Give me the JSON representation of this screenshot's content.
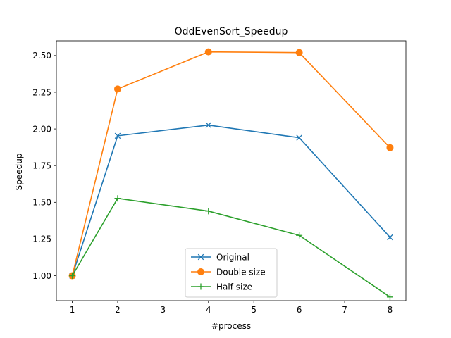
{
  "chart_data": {
    "type": "line",
    "title": "OddEvenSort_Speedup",
    "xlabel": "#process",
    "ylabel": "Speedup",
    "x": [
      1,
      2,
      4,
      6,
      8
    ],
    "xlim": [
      0.65,
      8.35
    ],
    "ylim": [
      0.83,
      2.6
    ],
    "xticks": [
      1,
      2,
      3,
      4,
      5,
      6,
      7,
      8
    ],
    "yticks": [
      1.0,
      1.25,
      1.5,
      1.75,
      2.0,
      2.25,
      2.5
    ],
    "ytick_labels": [
      "1.00",
      "1.25",
      "1.50",
      "1.75",
      "2.00",
      "2.25",
      "2.50"
    ],
    "grid": false,
    "legend_position": "bottom-center",
    "series": [
      {
        "name": "Original",
        "values": [
          1.0,
          1.953,
          2.026,
          1.94,
          1.262
        ],
        "color": "#1f77b4",
        "marker": "x"
      },
      {
        "name": "Double size",
        "values": [
          1.0,
          2.272,
          2.525,
          2.52,
          1.872
        ],
        "color": "#ff7f0e",
        "marker": "o"
      },
      {
        "name": "Half size",
        "values": [
          1.0,
          1.527,
          1.44,
          1.275,
          0.855
        ],
        "color": "#2ca02c",
        "marker": "+"
      }
    ]
  }
}
